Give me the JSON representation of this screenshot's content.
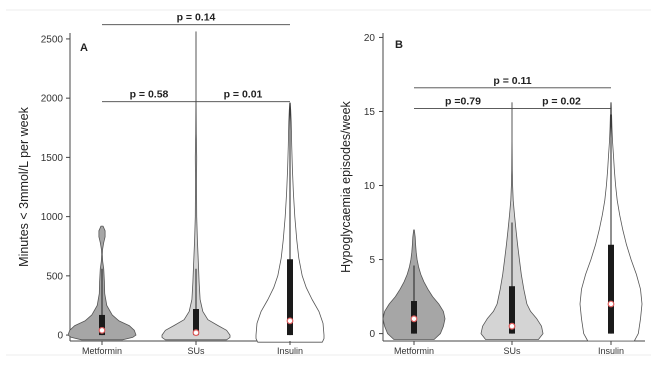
{
  "chart_data": [
    {
      "type": "violin",
      "panel_label": "A",
      "ylabel": "Minutes < 3mmol/L per week",
      "ylim": [
        -50,
        2550
      ],
      "yticks": [
        0,
        500,
        1000,
        1500,
        2000,
        2500
      ],
      "categories": [
        "Metformin",
        "SUs",
        "Insulin"
      ],
      "fill_colors": [
        "#a6a6a6",
        "#d4d4d4",
        "#ffffff"
      ],
      "groups": [
        {
          "name": "Metformin",
          "min": -40,
          "max": 920,
          "q1": 0,
          "median": 40,
          "q3": 170,
          "whisker_low": 0,
          "whisker_high": 560,
          "profile": [
            [
              -40,
              0.6
            ],
            [
              -20,
              0.9
            ],
            [
              0,
              1.0
            ],
            [
              40,
              0.95
            ],
            [
              80,
              0.8
            ],
            [
              120,
              0.5
            ],
            [
              170,
              0.3
            ],
            [
              250,
              0.14
            ],
            [
              350,
              0.08
            ],
            [
              450,
              0.07
            ],
            [
              560,
              0.05
            ],
            [
              620,
              0.02
            ],
            [
              680,
              0.01
            ],
            [
              720,
              0.015
            ],
            [
              780,
              0.05
            ],
            [
              830,
              0.09
            ],
            [
              880,
              0.09
            ],
            [
              920,
              0.03
            ]
          ]
        },
        {
          "name": "SUs",
          "min": -40,
          "max": 2560,
          "q1": 0,
          "median": 20,
          "q3": 220,
          "whisker_low": 0,
          "whisker_high": 560,
          "profile": [
            [
              -40,
              0.9
            ],
            [
              -20,
              1.0
            ],
            [
              0,
              1.0
            ],
            [
              40,
              0.9
            ],
            [
              80,
              0.65
            ],
            [
              130,
              0.35
            ],
            [
              200,
              0.2
            ],
            [
              300,
              0.12
            ],
            [
              450,
              0.09
            ],
            [
              600,
              0.07
            ],
            [
              800,
              0.04
            ],
            [
              1000,
              0.02
            ],
            [
              1300,
              0.015
            ],
            [
              1500,
              0.02
            ],
            [
              1700,
              0.01
            ],
            [
              2000,
              0.004
            ],
            [
              2560,
              0.003
            ]
          ]
        },
        {
          "name": "Insulin",
          "min": -60,
          "max": 1960,
          "q1": 0,
          "median": 120,
          "q3": 640,
          "whisker_low": 0,
          "whisker_high": 1960,
          "profile": [
            [
              -60,
              0.95
            ],
            [
              -30,
              1.0
            ],
            [
              0,
              1.0
            ],
            [
              100,
              0.97
            ],
            [
              200,
              0.85
            ],
            [
              300,
              0.65
            ],
            [
              400,
              0.48
            ],
            [
              500,
              0.36
            ],
            [
              650,
              0.26
            ],
            [
              800,
              0.2
            ],
            [
              1000,
              0.14
            ],
            [
              1200,
              0.1
            ],
            [
              1400,
              0.07
            ],
            [
              1600,
              0.05
            ],
            [
              1800,
              0.035
            ],
            [
              1900,
              0.02
            ],
            [
              1960,
              0.005
            ]
          ]
        }
      ],
      "comparisons": [
        {
          "from": "Metformin",
          "to": "Insulin",
          "y": 2620,
          "label": "p = 0.14"
        },
        {
          "from": "Metformin",
          "to": "SUs",
          "y": 1970,
          "label": "p = 0.58"
        },
        {
          "from": "SUs",
          "to": "Insulin",
          "y": 1970,
          "label": "p = 0.01"
        }
      ]
    },
    {
      "type": "violin",
      "panel_label": "B",
      "ylabel": "Hypoglycaemia episodes/week",
      "ylim": [
        -0.5,
        20.3
      ],
      "yticks": [
        0,
        5,
        10,
        15,
        20
      ],
      "categories": [
        "Metformin",
        "SUs",
        "Insulin"
      ],
      "fill_colors": [
        "#a6a6a6",
        "#d4d4d4",
        "#ffffff"
      ],
      "groups": [
        {
          "name": "Metformin",
          "min": -0.4,
          "max": 7.0,
          "q1": 0.0,
          "median": 1.0,
          "q3": 2.2,
          "whisker_low": 0.0,
          "whisker_high": 4.6,
          "profile": [
            [
              -0.4,
              0.65
            ],
            [
              0,
              0.85
            ],
            [
              0.5,
              0.95
            ],
            [
              1,
              1.0
            ],
            [
              1.5,
              0.95
            ],
            [
              2,
              0.8
            ],
            [
              2.5,
              0.6
            ],
            [
              3,
              0.45
            ],
            [
              3.5,
              0.32
            ],
            [
              4,
              0.22
            ],
            [
              4.5,
              0.15
            ],
            [
              5,
              0.1
            ],
            [
              5.5,
              0.07
            ],
            [
              6,
              0.05
            ],
            [
              6.5,
              0.04
            ],
            [
              7,
              0.01
            ]
          ]
        },
        {
          "name": "SUs",
          "min": -0.4,
          "max": 15.6,
          "q1": 0.0,
          "median": 0.5,
          "q3": 3.2,
          "whisker_low": 0.0,
          "whisker_high": 7.5,
          "profile": [
            [
              -0.4,
              0.85
            ],
            [
              0,
              1.0
            ],
            [
              0.5,
              0.95
            ],
            [
              1,
              0.8
            ],
            [
              1.5,
              0.6
            ],
            [
              2,
              0.48
            ],
            [
              3,
              0.38
            ],
            [
              4,
              0.3
            ],
            [
              5,
              0.24
            ],
            [
              6,
              0.18
            ],
            [
              7,
              0.13
            ],
            [
              8,
              0.08
            ],
            [
              9,
              0.04
            ],
            [
              10,
              0.02
            ],
            [
              11,
              0.01
            ],
            [
              12,
              0.006
            ],
            [
              13,
              0.004
            ],
            [
              14,
              0.004
            ],
            [
              15.6,
              0.002
            ]
          ]
        },
        {
          "name": "Insulin",
          "min": -0.5,
          "max": 15.6,
          "q1": 0.0,
          "median": 2.0,
          "q3": 6.0,
          "whisker_low": 0.0,
          "whisker_high": 14.8,
          "profile": [
            [
              -0.5,
              0.75
            ],
            [
              0,
              0.88
            ],
            [
              1,
              0.95
            ],
            [
              2,
              1.0
            ],
            [
              3,
              0.95
            ],
            [
              4,
              0.82
            ],
            [
              5,
              0.65
            ],
            [
              6,
              0.5
            ],
            [
              7,
              0.38
            ],
            [
              8,
              0.28
            ],
            [
              9,
              0.2
            ],
            [
              10,
              0.15
            ],
            [
              11,
              0.11
            ],
            [
              12,
              0.08
            ],
            [
              13,
              0.05
            ],
            [
              14,
              0.03
            ],
            [
              15,
              0.015
            ],
            [
              15.6,
              0.005
            ]
          ]
        }
      ],
      "comparisons": [
        {
          "from": "Metformin",
          "to": "Insulin",
          "y": 16.6,
          "label": "p = 0.11"
        },
        {
          "from": "Metformin",
          "to": "SUs",
          "y": 15.2,
          "label": "p =0.79"
        },
        {
          "from": "SUs",
          "to": "Insulin",
          "y": 15.2,
          "label": "p = 0.02"
        }
      ]
    }
  ]
}
